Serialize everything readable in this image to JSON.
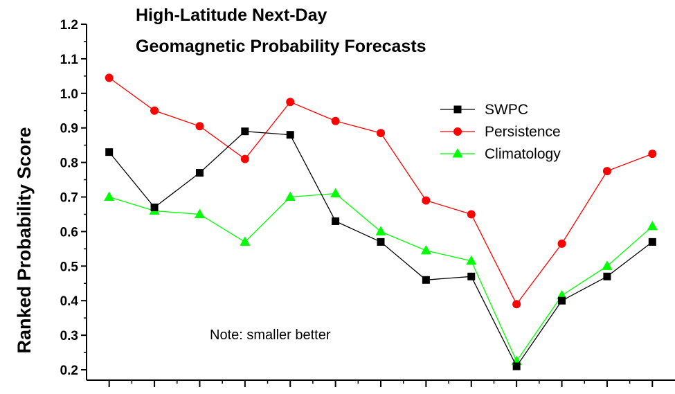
{
  "chart_data": {
    "type": "line",
    "title": "High-Latitude Next-Day",
    "subtitle": "Geomagnetic Probability Forecasts",
    "xlabel": "",
    "ylabel": "Ranked Probability Score",
    "ylim": [
      0.17,
      1.2
    ],
    "yticks": [
      "0.2",
      "0.3",
      "0.4",
      "0.5",
      "0.6",
      "0.7",
      "0.8",
      "0.9",
      "1.0",
      "1.1",
      "1.2"
    ],
    "x": [
      1,
      2,
      3,
      4,
      5,
      6,
      7,
      8,
      9,
      10,
      11,
      12,
      13
    ],
    "xlim": [
      0.5,
      13.5
    ],
    "grid": false,
    "legend_position": "top-right",
    "annotation": "Note: smaller better",
    "series": [
      {
        "name": "SWPC",
        "color": "#000000",
        "marker": "square",
        "values": [
          0.83,
          0.67,
          0.77,
          0.89,
          0.88,
          0.63,
          0.57,
          0.46,
          0.47,
          0.21,
          0.4,
          0.47,
          0.57
        ]
      },
      {
        "name": "Persistence",
        "color": "#ff0000",
        "marker": "circle",
        "values": [
          1.045,
          0.95,
          0.905,
          0.81,
          0.975,
          0.92,
          0.885,
          0.69,
          0.65,
          0.39,
          0.565,
          0.775,
          0.825
        ]
      },
      {
        "name": "Climatology",
        "color": "#00ff00",
        "marker": "triangle",
        "values": [
          0.7,
          0.66,
          0.65,
          0.57,
          0.7,
          0.71,
          0.6,
          0.545,
          0.515,
          0.225,
          0.415,
          0.5,
          0.615
        ]
      }
    ]
  }
}
